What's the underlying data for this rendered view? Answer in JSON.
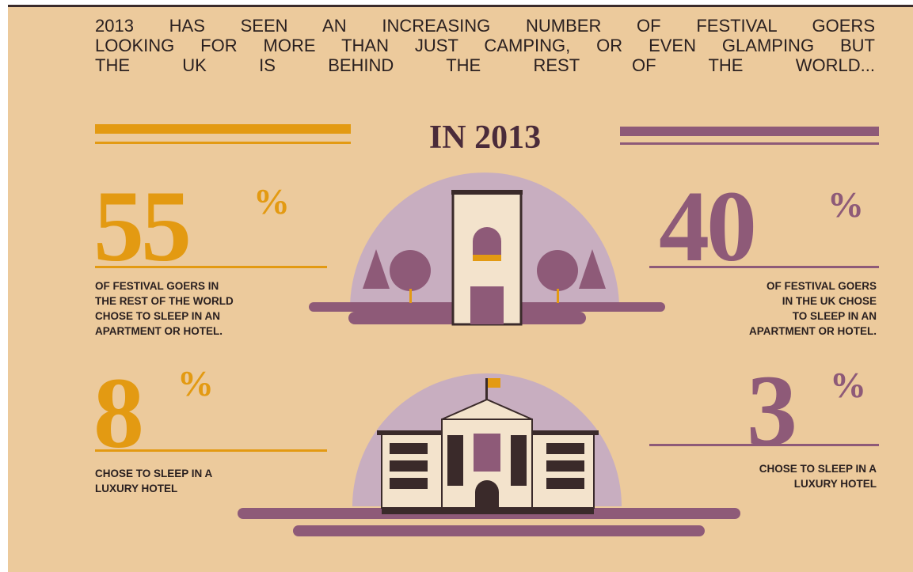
{
  "intro": {
    "lines": [
      "2013 HAS SEEN AN INCREASING NUMBER OF FESTIVAL GOERS",
      "LOOKING FOR MORE THAN JUST CAMPING, OR EVEN GLAMPING BUT",
      "THE UK IS BEHIND THE REST OF THE WORLD..."
    ]
  },
  "heading": "IN 2013",
  "stats": [
    {
      "number": "55",
      "unit": "%",
      "caption": [
        "OF FESTIVAL GOERS IN",
        "THE REST OF THE WORLD",
        "CHOSE TO SLEEP IN AN",
        "APARTMENT OR HOTEL."
      ]
    },
    {
      "number": "40",
      "unit": "%",
      "caption": [
        "OF FESTIVAL GOERS",
        "IN THE UK CHOSE",
        "TO SLEEP IN AN",
        "APARTMENT OR HOTEL."
      ]
    },
    {
      "number": "8",
      "unit": "%",
      "caption": [
        "CHOSE TO SLEEP IN A",
        "LUXURY HOTEL"
      ]
    },
    {
      "number": "3",
      "unit": "%",
      "caption": [
        "CHOSE TO SLEEP IN A",
        "LUXURY HOTEL"
      ]
    }
  ]
}
